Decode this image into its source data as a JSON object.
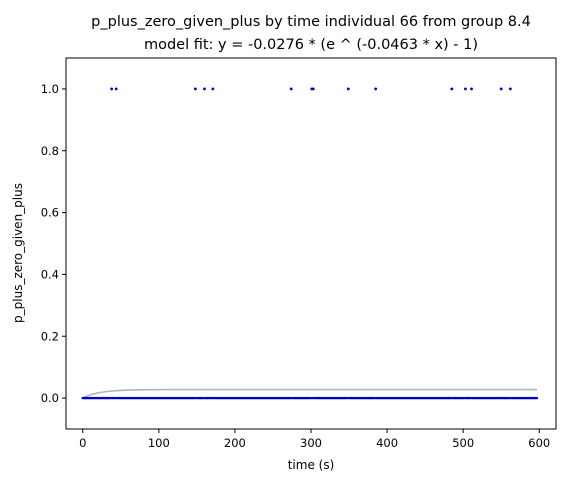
{
  "chart_data": {
    "type": "scatter",
    "title": "p_plus_zero_given_plus by time individual 66 from group 8.4",
    "subtitle": "model fit: y = -0.0276 * (e ^ (-0.0463 * x) - 1)",
    "xlabel": "time (s)",
    "ylabel": "p_plus_zero_given_plus",
    "xlim": [
      -22,
      622
    ],
    "ylim": [
      -0.1,
      1.1
    ],
    "x_ticks": [
      0,
      100,
      200,
      300,
      400,
      500,
      600
    ],
    "y_ticks": [
      0.0,
      0.2,
      0.4,
      0.6,
      0.8,
      1.0
    ],
    "x_tick_labels": [
      "0",
      "100",
      "200",
      "300",
      "400",
      "500",
      "600"
    ],
    "y_tick_labels": [
      "0.0",
      "0.2",
      "0.4",
      "0.6",
      "0.8",
      "1.0"
    ],
    "grid": false,
    "fit": {
      "a": -0.0276,
      "b": -0.0463,
      "x_range": [
        0,
        597
      ],
      "color": "#a9b8b8"
    },
    "points_color": "#0000cc",
    "points_ones_x": [
      38,
      44,
      148,
      160,
      171,
      274,
      301,
      303,
      349,
      385,
      485,
      503,
      511,
      550,
      562
    ],
    "points_zero_range": [
      0,
      597
    ],
    "points_zero_excluded": [
      38,
      44,
      148,
      160,
      171,
      274,
      301,
      303,
      349,
      385,
      485,
      503,
      511,
      550,
      562
    ]
  }
}
